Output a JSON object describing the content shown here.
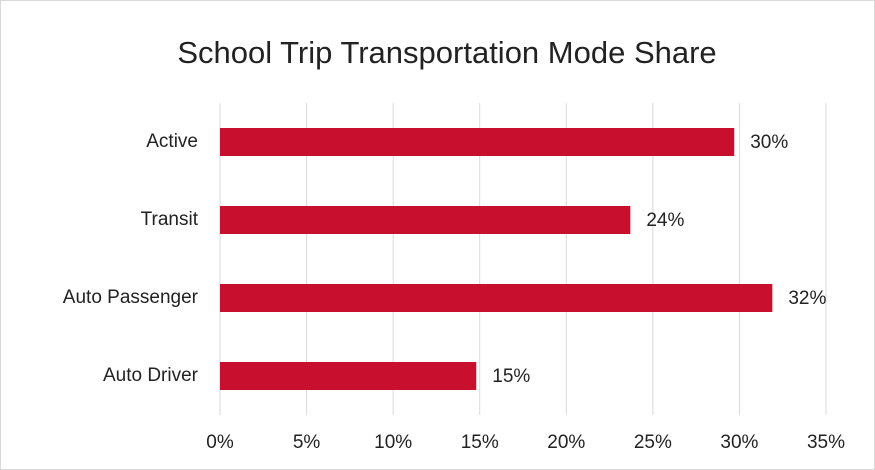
{
  "chart_data": {
    "type": "bar",
    "orientation": "horizontal",
    "title": "School Trip Transportation Mode Share",
    "categories": [
      "Active",
      "Transit",
      "Auto Passenger",
      "Auto Driver"
    ],
    "values": [
      29.7,
      23.7,
      31.9,
      14.8
    ],
    "value_labels": [
      "30%",
      "24%",
      "32%",
      "15%"
    ],
    "color": "#c8102e",
    "xlim": [
      0,
      35
    ],
    "xticks": [
      {
        "value": 0,
        "label": "0%"
      },
      {
        "value": 5,
        "label": "5%"
      },
      {
        "value": 10,
        "label": "10%"
      },
      {
        "value": 15,
        "label": "15%"
      },
      {
        "value": 20,
        "label": "20%"
      },
      {
        "value": 25,
        "label": "25%"
      },
      {
        "value": 30,
        "label": "30%"
      },
      {
        "value": 35,
        "label": "35%"
      }
    ],
    "grid": true
  }
}
